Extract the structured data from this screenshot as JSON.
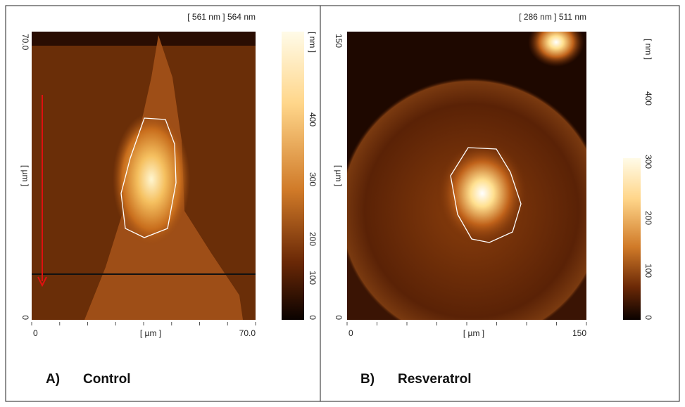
{
  "panels": [
    {
      "header": "[ 561 nm ] 564 nm",
      "y_axis": {
        "top": "70.0",
        "label": "[ µm ]",
        "bottom": "0"
      },
      "x_axis": {
        "left": "0",
        "label": "[ µm ]",
        "right": "70.0"
      },
      "colorbar": {
        "unit": "[ nm ]",
        "ticks": [
          "400",
          "300",
          "200",
          "100",
          "0"
        ]
      },
      "caption": {
        "letter": "A)",
        "text": "Control"
      }
    },
    {
      "header": "[ 286 nm ] 511 nm",
      "y_axis": {
        "top": "150",
        "label": "[ µm ]",
        "bottom": "0"
      },
      "x_axis": {
        "left": "0",
        "label": "[ µm ]",
        "right": "150"
      },
      "colorbar": {
        "unit": "[ nm ]",
        "ticks": [
          "400",
          "300",
          "200",
          "100",
          "0"
        ]
      },
      "caption": {
        "letter": "B)",
        "text": "Resveratrol"
      }
    }
  ]
}
